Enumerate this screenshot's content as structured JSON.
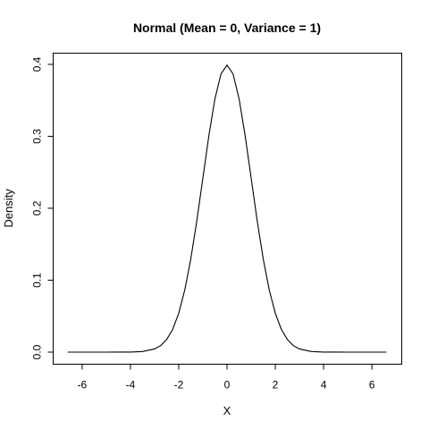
{
  "chart_data": {
    "type": "line",
    "title": "Normal (Mean = 0, Variance = 1)",
    "xlabel": "X",
    "ylabel": "Density",
    "xlim": [
      -6.7,
      6.7
    ],
    "ylim": [
      0,
      0.4
    ],
    "x_ticks": [
      -6,
      -4,
      -2,
      0,
      2,
      4,
      6
    ],
    "y_ticks": [
      0.0,
      0.1,
      0.2,
      0.3,
      0.4
    ],
    "x_tick_labels": [
      "-6",
      "-4",
      "-2",
      "0",
      "2",
      "4",
      "6"
    ],
    "y_tick_labels": [
      "0.0",
      "0.1",
      "0.2",
      "0.3",
      "0.4"
    ],
    "grid": false,
    "series": [
      {
        "x": [
          -6.6,
          -6.0,
          -5.0,
          -4.0,
          -3.5,
          -3.0,
          -2.75,
          -2.5,
          -2.25,
          -2.0,
          -1.75,
          -1.5,
          -1.25,
          -1.0,
          -0.75,
          -0.5,
          -0.25,
          0.0,
          0.25,
          0.5,
          0.75,
          1.0,
          1.25,
          1.5,
          1.75,
          2.0,
          2.25,
          2.5,
          2.75,
          3.0,
          3.5,
          4.0,
          5.0,
          6.0,
          6.6
        ],
        "values": [
          0.0,
          0.0,
          0.0,
          0.0001,
          0.0009,
          0.0044,
          0.0091,
          0.0175,
          0.0317,
          0.054,
          0.0863,
          0.1295,
          0.1826,
          0.242,
          0.3011,
          0.3521,
          0.3867,
          0.3989,
          0.3867,
          0.3521,
          0.3011,
          0.242,
          0.1826,
          0.1295,
          0.0863,
          0.054,
          0.0317,
          0.0175,
          0.0091,
          0.0044,
          0.0009,
          0.0001,
          0.0,
          0.0,
          0.0
        ]
      }
    ]
  }
}
